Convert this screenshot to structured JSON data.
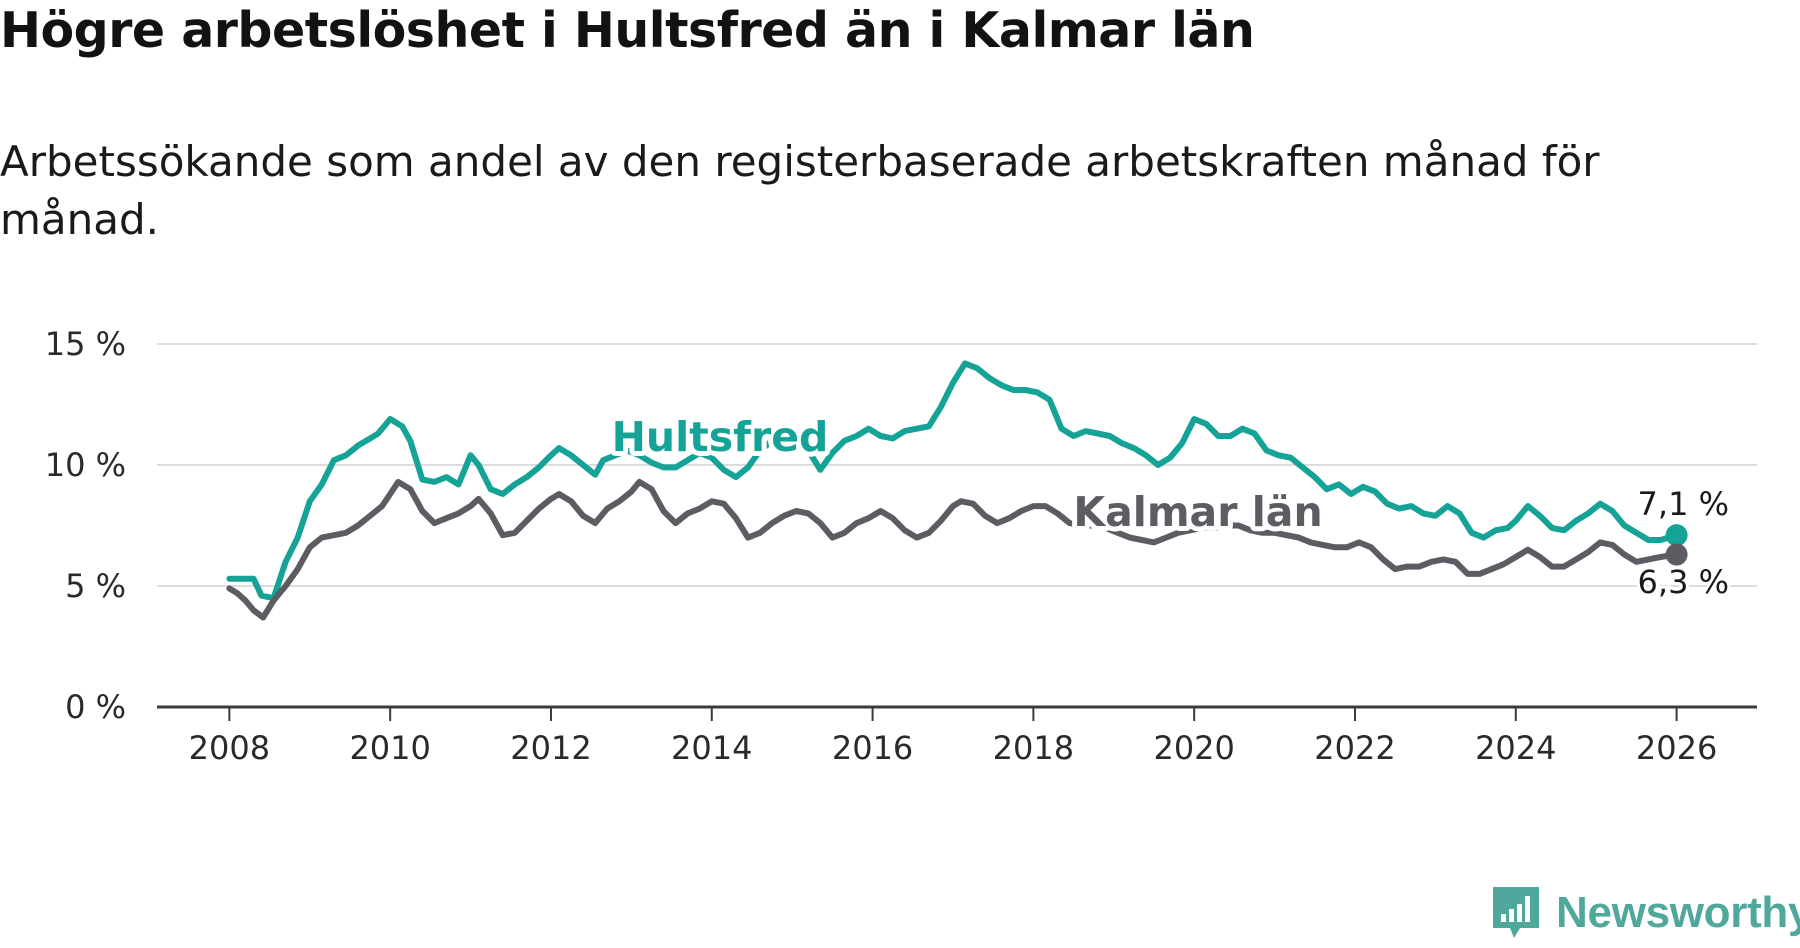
{
  "title": "Högre arbetslöshet i Hultsfred än i Kalmar län",
  "subtitle": "Arbetssökande som andel av den registerbaserade arbetskraften månad för månad.",
  "brand": {
    "name": "Newsworthy"
  },
  "chart_data": {
    "type": "line",
    "title": "Högre arbetslöshet i Hultsfred än i Kalmar län",
    "xlabel": "",
    "ylabel": "",
    "xlim": [
      2007.1,
      2027.0
    ],
    "ylim": [
      0,
      15
    ],
    "grid": true,
    "x_ticks": [
      2008,
      2010,
      2012,
      2014,
      2016,
      2018,
      2020,
      2022,
      2024,
      2026
    ],
    "x_tick_labels": [
      "2008",
      "2010",
      "2012",
      "2014",
      "2016",
      "2018",
      "2020",
      "2022",
      "2024",
      "2026"
    ],
    "y_ticks": [
      0,
      5,
      10,
      15
    ],
    "y_tick_labels": [
      "0 %",
      "5 %",
      "10 %",
      "15 %"
    ],
    "series": [
      {
        "name": "Hultsfred",
        "color": "#14a396",
        "x": [
          2008.0,
          2008.3,
          2008.4,
          2008.55,
          2008.7,
          2008.85,
          2009.0,
          2009.15,
          2009.3,
          2009.45,
          2009.6,
          2009.75,
          2009.85,
          2010.0,
          2010.15,
          2010.25,
          2010.4,
          2010.55,
          2010.7,
          2010.85,
          2011.0,
          2011.1,
          2011.25,
          2011.4,
          2011.55,
          2011.7,
          2011.85,
          2012.0,
          2012.1,
          2012.25,
          2012.4,
          2012.55,
          2012.65,
          2012.8,
          2012.95,
          2013.1,
          2013.25,
          2013.4,
          2013.55,
          2013.7,
          2013.85,
          2014.0,
          2014.15,
          2014.3,
          2014.45,
          2014.6,
          2014.75,
          2014.9,
          2015.05,
          2015.2,
          2015.35,
          2015.5,
          2015.65,
          2015.8,
          2015.95,
          2016.1,
          2016.25,
          2016.4,
          2016.55,
          2016.7,
          2016.85,
          2017.0,
          2017.15,
          2017.3,
          2017.45,
          2017.6,
          2017.75,
          2017.9,
          2018.05,
          2018.2,
          2018.35,
          2018.5,
          2018.65,
          2018.8,
          2018.95,
          2019.1,
          2019.25,
          2019.4,
          2019.55,
          2019.7,
          2019.85,
          2020.0,
          2020.15,
          2020.3,
          2020.45,
          2020.6,
          2020.75,
          2020.9,
          2021.05,
          2021.2,
          2021.35,
          2021.5,
          2021.65,
          2021.8,
          2021.95,
          2022.1,
          2022.25,
          2022.4,
          2022.55,
          2022.7,
          2022.85,
          2023.0,
          2023.15,
          2023.3,
          2023.45,
          2023.6,
          2023.75,
          2023.9,
          2024.0,
          2024.15,
          2024.3,
          2024.45,
          2024.6,
          2024.75,
          2024.9,
          2025.05,
          2025.2,
          2025.35,
          2025.5,
          2025.65,
          2025.8,
          2026.0
        ],
        "values": [
          5.3,
          5.3,
          4.6,
          4.5,
          6.0,
          7.0,
          8.5,
          9.2,
          10.2,
          10.4,
          10.8,
          11.1,
          11.3,
          11.9,
          11.6,
          11.0,
          9.4,
          9.3,
          9.5,
          9.2,
          10.4,
          10.0,
          9.0,
          8.8,
          9.2,
          9.5,
          9.9,
          10.4,
          10.7,
          10.4,
          10.0,
          9.6,
          10.2,
          10.4,
          10.6,
          10.4,
          10.1,
          9.9,
          9.9,
          10.2,
          10.5,
          10.3,
          9.8,
          9.5,
          9.9,
          10.6,
          11.0,
          11.4,
          11.1,
          10.6,
          9.8,
          10.5,
          11.0,
          11.2,
          11.5,
          11.2,
          11.1,
          11.4,
          11.5,
          11.6,
          12.4,
          13.4,
          14.2,
          14.0,
          13.6,
          13.3,
          13.1,
          13.1,
          13.0,
          12.7,
          11.5,
          11.2,
          11.4,
          11.3,
          11.2,
          10.9,
          10.7,
          10.4,
          10.0,
          10.3,
          10.9,
          11.9,
          11.7,
          11.2,
          11.2,
          11.5,
          11.3,
          10.6,
          10.4,
          10.3,
          9.9,
          9.5,
          9.0,
          9.2,
          8.8,
          9.1,
          8.9,
          8.4,
          8.2,
          8.3,
          8.0,
          7.9,
          8.3,
          8.0,
          7.2,
          7.0,
          7.3,
          7.4,
          7.7,
          8.3,
          7.9,
          7.4,
          7.3,
          7.7,
          8.0,
          8.4,
          8.1,
          7.5,
          7.2,
          6.9,
          6.9,
          7.1
        ],
        "end_label": "7,1 %",
        "line_label": "Hultsfred"
      },
      {
        "name": "Kalmar län",
        "color": "#5d5c62",
        "x": [
          2008.0,
          2008.1,
          2008.2,
          2008.3,
          2008.42,
          2008.55,
          2008.7,
          2008.85,
          2009.0,
          2009.15,
          2009.3,
          2009.45,
          2009.6,
          2009.75,
          2009.9,
          2010.0,
          2010.1,
          2010.25,
          2010.4,
          2010.55,
          2010.7,
          2010.85,
          2011.0,
          2011.1,
          2011.25,
          2011.4,
          2011.55,
          2011.7,
          2011.85,
          2012.0,
          2012.1,
          2012.25,
          2012.4,
          2012.55,
          2012.7,
          2012.85,
          2013.0,
          2013.1,
          2013.25,
          2013.4,
          2013.55,
          2013.7,
          2013.85,
          2014.0,
          2014.15,
          2014.3,
          2014.45,
          2014.6,
          2014.75,
          2014.9,
          2015.05,
          2015.2,
          2015.35,
          2015.5,
          2015.65,
          2015.8,
          2015.95,
          2016.1,
          2016.25,
          2016.4,
          2016.55,
          2016.7,
          2016.85,
          2017.0,
          2017.1,
          2017.25,
          2017.4,
          2017.55,
          2017.7,
          2017.85,
          2018.0,
          2018.15,
          2018.3,
          2018.45,
          2018.6,
          2018.75,
          2018.9,
          2019.05,
          2019.2,
          2019.35,
          2019.5,
          2019.65,
          2019.8,
          2019.95,
          2020.1,
          2020.25,
          2020.4,
          2020.55,
          2020.7,
          2020.85,
          2021.0,
          2021.15,
          2021.3,
          2021.45,
          2021.6,
          2021.75,
          2021.9,
          2022.05,
          2022.2,
          2022.35,
          2022.5,
          2022.65,
          2022.8,
          2022.95,
          2023.1,
          2023.25,
          2023.4,
          2023.55,
          2023.7,
          2023.85,
          2024.0,
          2024.15,
          2024.3,
          2024.45,
          2024.6,
          2024.75,
          2024.9,
          2025.05,
          2025.2,
          2025.35,
          2025.5,
          2025.65,
          2025.8,
          2026.0
        ],
        "values": [
          4.9,
          4.7,
          4.4,
          4.0,
          3.7,
          4.4,
          5.0,
          5.7,
          6.6,
          7.0,
          7.1,
          7.2,
          7.5,
          7.9,
          8.3,
          8.8,
          9.3,
          9.0,
          8.1,
          7.6,
          7.8,
          8.0,
          8.3,
          8.6,
          8.0,
          7.1,
          7.2,
          7.7,
          8.2,
          8.6,
          8.8,
          8.5,
          7.9,
          7.6,
          8.2,
          8.5,
          8.9,
          9.3,
          9.0,
          8.1,
          7.6,
          8.0,
          8.2,
          8.5,
          8.4,
          7.8,
          7.0,
          7.2,
          7.6,
          7.9,
          8.1,
          8.0,
          7.6,
          7.0,
          7.2,
          7.6,
          7.8,
          8.1,
          7.8,
          7.3,
          7.0,
          7.2,
          7.7,
          8.3,
          8.5,
          8.4,
          7.9,
          7.6,
          7.8,
          8.1,
          8.3,
          8.3,
          8.0,
          7.6,
          7.5,
          7.5,
          7.4,
          7.2,
          7.0,
          6.9,
          6.8,
          7.0,
          7.2,
          7.3,
          7.4,
          7.4,
          7.5,
          7.5,
          7.3,
          7.2,
          7.2,
          7.1,
          7.0,
          6.8,
          6.7,
          6.6,
          6.6,
          6.8,
          6.6,
          6.1,
          5.7,
          5.8,
          5.8,
          6.0,
          6.1,
          6.0,
          5.5,
          5.5,
          5.7,
          5.9,
          6.2,
          6.5,
          6.2,
          5.8,
          5.8,
          6.1,
          6.4,
          6.8,
          6.7,
          6.3,
          6.0,
          6.1,
          6.2,
          6.3
        ],
        "end_label": "6,3 %",
        "line_label": "Kalmar län"
      }
    ]
  }
}
